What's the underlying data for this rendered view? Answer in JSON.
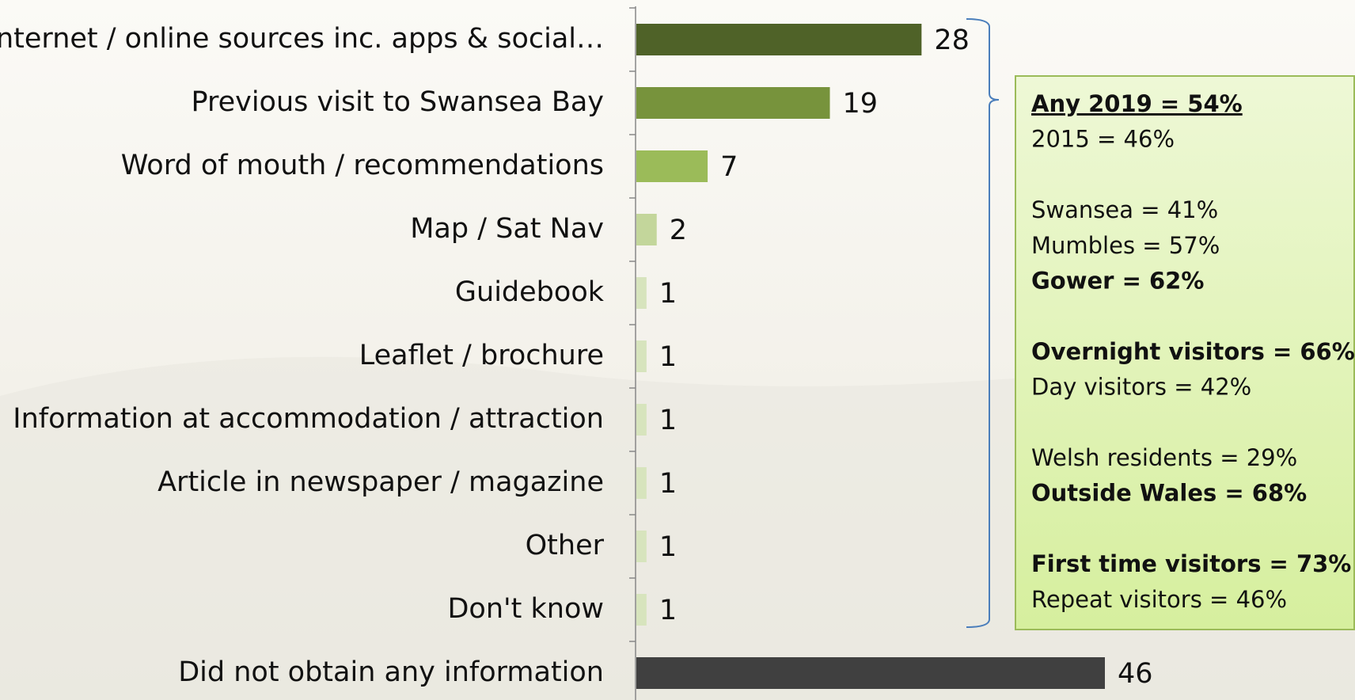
{
  "chart_data": {
    "type": "hbar",
    "categories": [
      "Internet / online sources inc. apps & social…",
      "Previous visit to Swansea Bay",
      "Word of mouth / recommendations",
      "Map / Sat Nav",
      "Guidebook",
      "Leaflet / brochure",
      "Information at accommodation / attraction",
      "Article in newspaper / magazine",
      "Other",
      "Don't know",
      "Did not obtain any information"
    ],
    "values": [
      28,
      19,
      7,
      2,
      1,
      1,
      1,
      1,
      1,
      1,
      46
    ],
    "colors": [
      "#4f6228",
      "#77933c",
      "#9bbb59",
      "#c3d69b",
      "#d7e4bd",
      "#d7e4bd",
      "#d7e4bd",
      "#d7e4bd",
      "#d7e4bd",
      "#d7e4bd",
      "#404040"
    ],
    "annotation": [
      [
        {
          "text": "Any 2019 = 54%",
          "style": "bold-underline"
        },
        {
          "text": "2015 = 46%",
          "style": "normal"
        }
      ],
      [
        {
          "text": "Swansea = 41%",
          "style": "normal"
        },
        {
          "text": "Mumbles = 57%",
          "style": "normal"
        },
        {
          "text": "Gower = 62%",
          "style": "bold"
        }
      ],
      [
        {
          "text": "Overnight visitors = 66%",
          "style": "bold"
        },
        {
          "text": "Day visitors = 42%",
          "style": "normal"
        }
      ],
      [
        {
          "text": "Welsh residents = 29%",
          "style": "normal"
        },
        {
          "text": "Outside Wales = 68%",
          "style": "bold"
        }
      ],
      [
        {
          "text": "First time visitors = 73%",
          "style": "bold"
        },
        {
          "text": "Repeat visitors = 46%",
          "style": "normal"
        }
      ]
    ]
  }
}
